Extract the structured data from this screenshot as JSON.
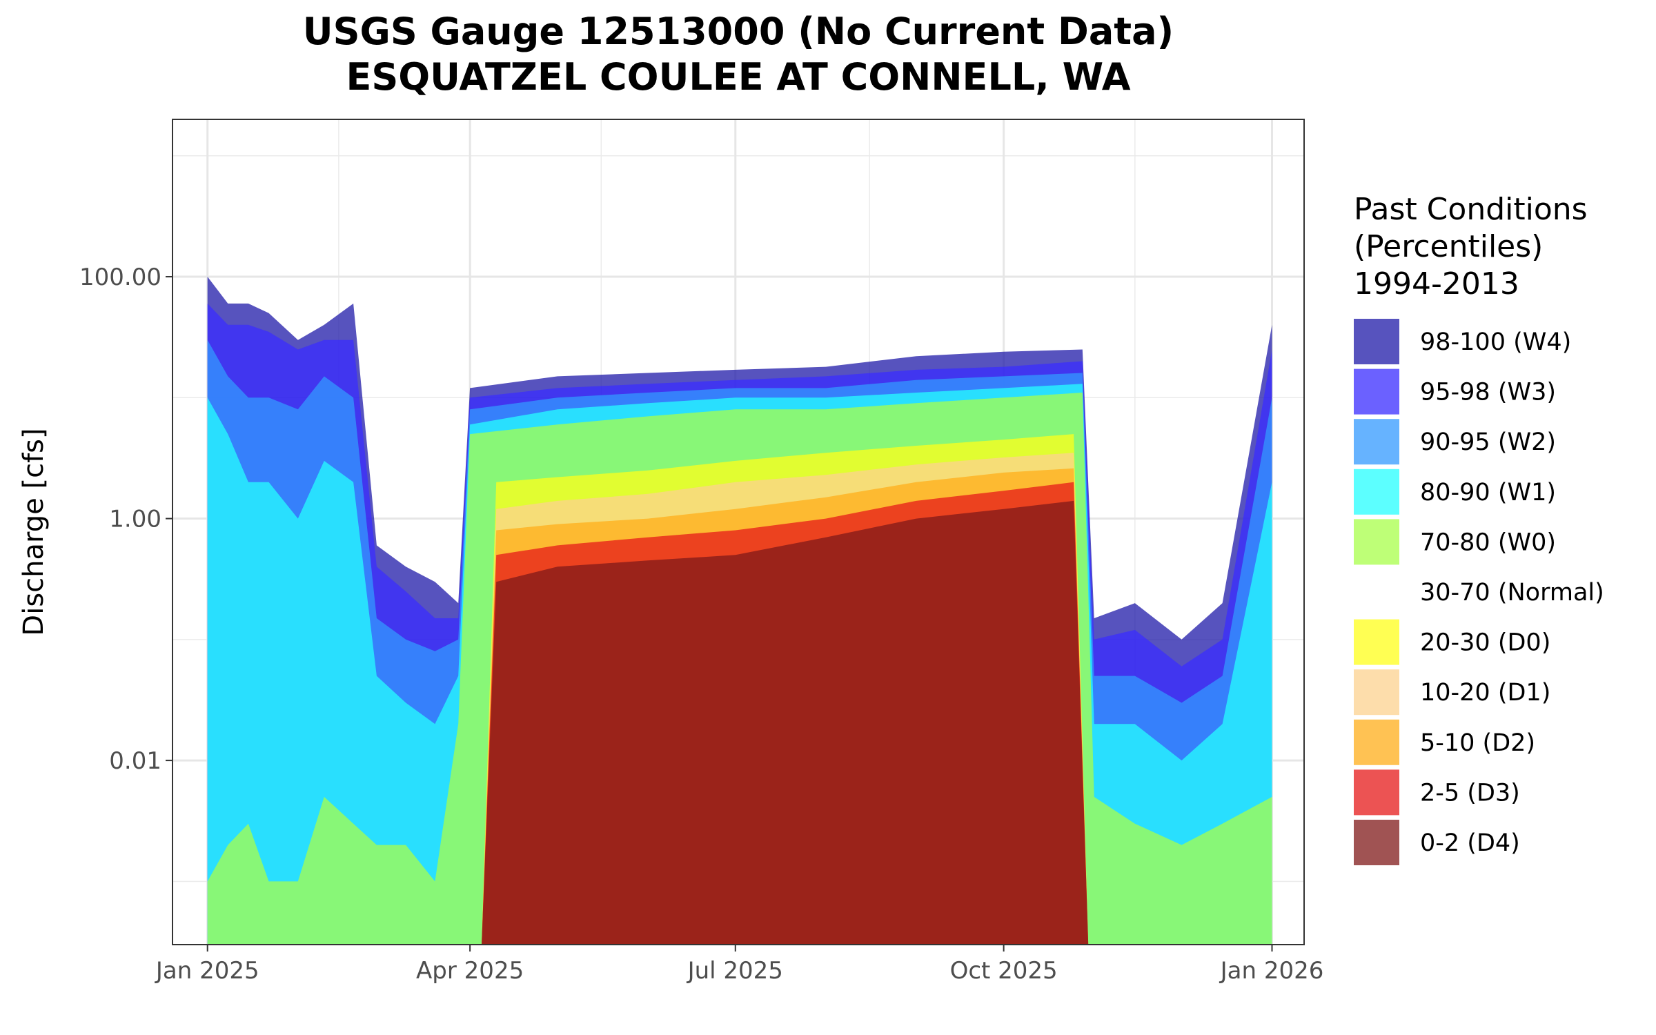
{
  "chart_data": {
    "type": "area",
    "title": "USGS Gauge 12513000 (No Current Data)",
    "subtitle": "ESQUATZEL COULEE AT CONNELL, WA",
    "ylabel": "Discharge [cfs]",
    "xlabel": "",
    "y_scale": "log10",
    "ylim": [
      0.0003,
      2000
    ],
    "xlim": [
      "2024-12-20",
      "2026-01-12"
    ],
    "grid": true,
    "y_ticks": [
      {
        "value": 100,
        "label": "100.00"
      },
      {
        "value": 1,
        "label": "1.00"
      },
      {
        "value": 0.01,
        "label": "0.01"
      }
    ],
    "x_ticks": [
      {
        "date": "2025-01-01",
        "label": "Jan 2025"
      },
      {
        "date": "2025-04-01",
        "label": "Apr 2025"
      },
      {
        "date": "2025-07-01",
        "label": "Jul 2025"
      },
      {
        "date": "2025-10-01",
        "label": "Oct 2025"
      },
      {
        "date": "2026-01-01",
        "label": "Jan 2026"
      }
    ],
    "legend": {
      "position": "right",
      "title_lines": [
        "Past Conditions",
        "(Percentiles)",
        "1994-2013"
      ],
      "items": [
        {
          "label": "98-100 (W4)",
          "color": "#1f1aa8"
        },
        {
          "label": "95-98 (W3)",
          "color": "#3a2cff"
        },
        {
          "label": "90-95 (W2)",
          "color": "#3399ff"
        },
        {
          "label": "80-90 (W1)",
          "color": "#26ffff"
        },
        {
          "label": "70-80 (W0)",
          "color": "#a8ff4a"
        },
        {
          "label": "30-70 (Normal)",
          "color": "#ffffff"
        },
        {
          "label": "20-30 (D0)",
          "color": "#ffff1a"
        },
        {
          "label": "10-20 (D1)",
          "color": "#fcd28f"
        },
        {
          "label": "5-10 (D2)",
          "color": "#ffad1a"
        },
        {
          "label": "2-5 (D3)",
          "color": "#e61a1a"
        },
        {
          "label": "0-2 (D4)",
          "color": "#801a1a"
        }
      ]
    },
    "series_bands": [
      {
        "name": "98-100 (W4)",
        "color": "#1f1aa8",
        "alpha": 0.75,
        "points": [
          [
            "2025-01-01",
            100
          ],
          [
            "2025-01-08",
            60
          ],
          [
            "2025-01-15",
            60
          ],
          [
            "2025-01-22",
            50
          ],
          [
            "2025-02-01",
            30
          ],
          [
            "2025-02-10",
            40
          ],
          [
            "2025-02-20",
            60
          ],
          [
            "2025-02-28",
            0.6
          ],
          [
            "2025-03-10",
            0.4
          ],
          [
            "2025-03-20",
            0.3
          ],
          [
            "2025-03-28",
            0.2
          ],
          [
            "2025-04-01",
            12
          ],
          [
            "2025-05-01",
            15
          ],
          [
            "2025-06-01",
            16
          ],
          [
            "2025-07-01",
            17
          ],
          [
            "2025-08-01",
            18
          ],
          [
            "2025-09-01",
            22
          ],
          [
            "2025-10-01",
            24
          ],
          [
            "2025-10-28",
            25
          ],
          [
            "2025-11-01",
            0.15
          ],
          [
            "2025-11-15",
            0.2
          ],
          [
            "2025-12-01",
            0.1
          ],
          [
            "2025-12-15",
            0.2
          ],
          [
            "2026-01-01",
            40
          ]
        ]
      },
      {
        "name": "95-98 (W3)",
        "color": "#3a2cff",
        "alpha": 0.75,
        "points": [
          [
            "2025-01-01",
            60
          ],
          [
            "2025-01-08",
            40
          ],
          [
            "2025-01-15",
            40
          ],
          [
            "2025-01-22",
            35
          ],
          [
            "2025-02-01",
            25
          ],
          [
            "2025-02-10",
            30
          ],
          [
            "2025-02-20",
            30
          ],
          [
            "2025-02-28",
            0.4
          ],
          [
            "2025-03-10",
            0.25
          ],
          [
            "2025-03-20",
            0.15
          ],
          [
            "2025-03-28",
            0.15
          ],
          [
            "2025-04-01",
            10
          ],
          [
            "2025-05-01",
            12
          ],
          [
            "2025-06-01",
            13
          ],
          [
            "2025-07-01",
            14
          ],
          [
            "2025-08-01",
            15
          ],
          [
            "2025-09-01",
            17
          ],
          [
            "2025-10-01",
            18
          ],
          [
            "2025-10-28",
            20
          ],
          [
            "2025-11-01",
            0.1
          ],
          [
            "2025-11-15",
            0.12
          ],
          [
            "2025-12-01",
            0.06
          ],
          [
            "2025-12-15",
            0.1
          ],
          [
            "2026-01-01",
            25
          ]
        ]
      },
      {
        "name": "90-95 (W2)",
        "color": "#3399ff",
        "alpha": 0.75,
        "points": [
          [
            "2025-01-01",
            30
          ],
          [
            "2025-01-08",
            15
          ],
          [
            "2025-01-15",
            10
          ],
          [
            "2025-01-22",
            10
          ],
          [
            "2025-02-01",
            8
          ],
          [
            "2025-02-10",
            15
          ],
          [
            "2025-02-20",
            10
          ],
          [
            "2025-02-28",
            0.15
          ],
          [
            "2025-03-10",
            0.1
          ],
          [
            "2025-03-20",
            0.08
          ],
          [
            "2025-03-28",
            0.1
          ],
          [
            "2025-04-01",
            8
          ],
          [
            "2025-05-01",
            10
          ],
          [
            "2025-06-01",
            11
          ],
          [
            "2025-07-01",
            12
          ],
          [
            "2025-08-01",
            12
          ],
          [
            "2025-09-01",
            14
          ],
          [
            "2025-10-01",
            15
          ],
          [
            "2025-10-28",
            16
          ],
          [
            "2025-11-01",
            0.05
          ],
          [
            "2025-11-15",
            0.05
          ],
          [
            "2025-12-01",
            0.03
          ],
          [
            "2025-12-15",
            0.05
          ],
          [
            "2026-01-01",
            10
          ]
        ]
      },
      {
        "name": "80-90 (W1)",
        "color": "#26ffff",
        "alpha": 0.75,
        "points": [
          [
            "2025-01-01",
            10
          ],
          [
            "2025-01-08",
            5
          ],
          [
            "2025-01-15",
            2
          ],
          [
            "2025-01-22",
            2
          ],
          [
            "2025-02-01",
            1
          ],
          [
            "2025-02-10",
            3
          ],
          [
            "2025-02-20",
            2
          ],
          [
            "2025-02-28",
            0.05
          ],
          [
            "2025-03-10",
            0.03
          ],
          [
            "2025-03-20",
            0.02
          ],
          [
            "2025-03-28",
            0.05
          ],
          [
            "2025-04-01",
            6
          ],
          [
            "2025-05-01",
            8
          ],
          [
            "2025-06-01",
            9
          ],
          [
            "2025-07-01",
            10
          ],
          [
            "2025-08-01",
            10
          ],
          [
            "2025-09-01",
            11
          ],
          [
            "2025-10-01",
            12
          ],
          [
            "2025-10-28",
            13
          ],
          [
            "2025-11-01",
            0.02
          ],
          [
            "2025-11-15",
            0.02
          ],
          [
            "2025-12-01",
            0.01
          ],
          [
            "2025-12-15",
            0.02
          ],
          [
            "2026-01-01",
            2
          ]
        ]
      },
      {
        "name": "70-80 (W0)",
        "color": "#a8ff4a",
        "alpha": 0.75,
        "points": [
          [
            "2025-01-01",
            0.001
          ],
          [
            "2025-01-08",
            0.002
          ],
          [
            "2025-01-15",
            0.003
          ],
          [
            "2025-01-22",
            0.001
          ],
          [
            "2025-02-01",
            0.001
          ],
          [
            "2025-02-10",
            0.005
          ],
          [
            "2025-02-20",
            0.003
          ],
          [
            "2025-02-28",
            0.002
          ],
          [
            "2025-03-10",
            0.002
          ],
          [
            "2025-03-20",
            0.001
          ],
          [
            "2025-03-28",
            0.02
          ],
          [
            "2025-04-01",
            5
          ],
          [
            "2025-05-01",
            6
          ],
          [
            "2025-06-01",
            7
          ],
          [
            "2025-07-01",
            8
          ],
          [
            "2025-08-01",
            8
          ],
          [
            "2025-09-01",
            9
          ],
          [
            "2025-10-01",
            10
          ],
          [
            "2025-10-28",
            11
          ],
          [
            "2025-11-01",
            0.005
          ],
          [
            "2025-11-15",
            0.003
          ],
          [
            "2025-12-01",
            0.002
          ],
          [
            "2025-12-15",
            0.003
          ],
          [
            "2026-01-01",
            0.005
          ]
        ]
      },
      {
        "name": "20-30 (D0)",
        "color": "#ffff1a",
        "alpha": 0.75,
        "points": [
          [
            "2025-04-05",
            0.0003
          ],
          [
            "2025-04-10",
            2.0
          ],
          [
            "2025-05-01",
            2.2
          ],
          [
            "2025-06-01",
            2.5
          ],
          [
            "2025-07-01",
            3.0
          ],
          [
            "2025-08-01",
            3.5
          ],
          [
            "2025-09-01",
            4.0
          ],
          [
            "2025-10-01",
            4.5
          ],
          [
            "2025-10-25",
            5.0
          ],
          [
            "2025-10-30",
            0.0003
          ]
        ]
      },
      {
        "name": "10-20 (D1)",
        "color": "#fcd28f",
        "alpha": 0.75,
        "points": [
          [
            "2025-04-05",
            0.0003
          ],
          [
            "2025-04-10",
            1.2
          ],
          [
            "2025-05-01",
            1.4
          ],
          [
            "2025-06-01",
            1.6
          ],
          [
            "2025-07-01",
            2.0
          ],
          [
            "2025-08-01",
            2.3
          ],
          [
            "2025-09-01",
            2.8
          ],
          [
            "2025-10-01",
            3.2
          ],
          [
            "2025-10-25",
            3.5
          ],
          [
            "2025-10-30",
            0.0003
          ]
        ]
      },
      {
        "name": "5-10 (D2)",
        "color": "#ffad1a",
        "alpha": 0.75,
        "points": [
          [
            "2025-04-05",
            0.0003
          ],
          [
            "2025-04-10",
            0.8
          ],
          [
            "2025-05-01",
            0.9
          ],
          [
            "2025-06-01",
            1.0
          ],
          [
            "2025-07-01",
            1.2
          ],
          [
            "2025-08-01",
            1.5
          ],
          [
            "2025-09-01",
            2.0
          ],
          [
            "2025-10-01",
            2.4
          ],
          [
            "2025-10-25",
            2.6
          ],
          [
            "2025-10-30",
            0.0003
          ]
        ]
      },
      {
        "name": "2-5 (D3)",
        "color": "#e61a1a",
        "alpha": 0.75,
        "points": [
          [
            "2025-04-05",
            0.0003
          ],
          [
            "2025-04-10",
            0.5
          ],
          [
            "2025-05-01",
            0.6
          ],
          [
            "2025-06-01",
            0.7
          ],
          [
            "2025-07-01",
            0.8
          ],
          [
            "2025-08-01",
            1.0
          ],
          [
            "2025-09-01",
            1.4
          ],
          [
            "2025-10-01",
            1.7
          ],
          [
            "2025-10-25",
            2.0
          ],
          [
            "2025-10-30",
            0.0003
          ]
        ]
      },
      {
        "name": "0-2 (D4)",
        "color": "#801a1a",
        "alpha": 0.75,
        "points": [
          [
            "2025-04-05",
            0.0003
          ],
          [
            "2025-04-10",
            0.3
          ],
          [
            "2025-05-01",
            0.4
          ],
          [
            "2025-06-01",
            0.45
          ],
          [
            "2025-07-01",
            0.5
          ],
          [
            "2025-08-01",
            0.7
          ],
          [
            "2025-09-01",
            1.0
          ],
          [
            "2025-10-01",
            1.2
          ],
          [
            "2025-10-25",
            1.4
          ],
          [
            "2025-10-30",
            0.0003
          ]
        ]
      }
    ]
  }
}
